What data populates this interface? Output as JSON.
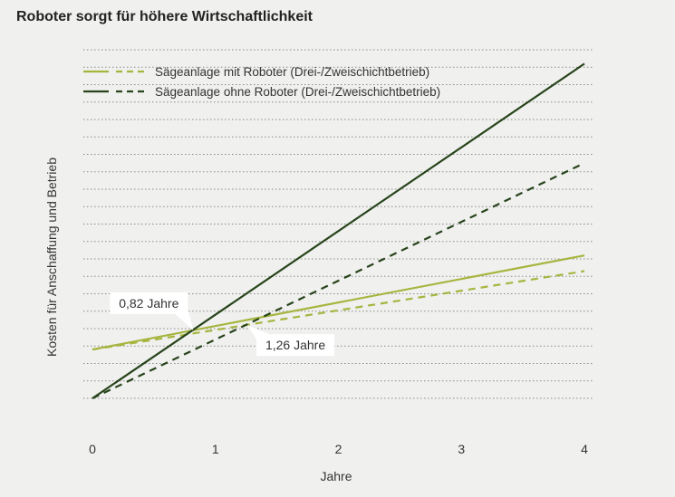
{
  "title": "Roboter sorgt für höhere Wirtschaftlichkeit",
  "colors": {
    "background": "#f0f0ef",
    "with_robot": "#a6b53e",
    "without_robot": "#27441b",
    "grid": "#8a8a8a"
  },
  "chart_data": {
    "type": "line",
    "xlabel": "Jahre",
    "ylabel": "Kosten für Anschaffung und Betrieb",
    "xlim": [
      0,
      4
    ],
    "ylim": [
      0,
      20
    ],
    "x_ticks": [
      "0",
      "1",
      "2",
      "3",
      "4"
    ],
    "y_ticks_labeled": false,
    "grid": "horizontal dotted",
    "legend": [
      {
        "label": "Sägeanlage mit Roboter (Drei-/Zweischichtbetrieb)",
        "color_key": "with_robot"
      },
      {
        "label": "Sägeanlage ohne Roboter (Drei-/Zweischichtbetrieb)",
        "color_key": "without_robot"
      }
    ],
    "legend_position": "top-left",
    "series": [
      {
        "group": "mit Roboter",
        "style": "solid",
        "color_key": "with_robot",
        "x": [
          0,
          4
        ],
        "y": [
          2.8,
          8.2
        ]
      },
      {
        "group": "mit Roboter",
        "style": "dashed",
        "color_key": "with_robot",
        "x": [
          0,
          4
        ],
        "y": [
          2.8,
          7.3
        ]
      },
      {
        "group": "ohne Roboter",
        "style": "solid",
        "color_key": "without_robot",
        "x": [
          0,
          4
        ],
        "y": [
          0,
          19.2
        ]
      },
      {
        "group": "ohne Roboter",
        "style": "dashed",
        "color_key": "without_robot",
        "x": [
          0,
          4
        ],
        "y": [
          0,
          13.5
        ]
      }
    ],
    "annotations": [
      {
        "text": "0,82 Jahre",
        "x": 0.82,
        "y": 3.9,
        "anchor": "upper-left"
      },
      {
        "text": "1,26 Jahre",
        "x": 1.26,
        "y": 4.2,
        "anchor": "lower-right"
      }
    ]
  }
}
